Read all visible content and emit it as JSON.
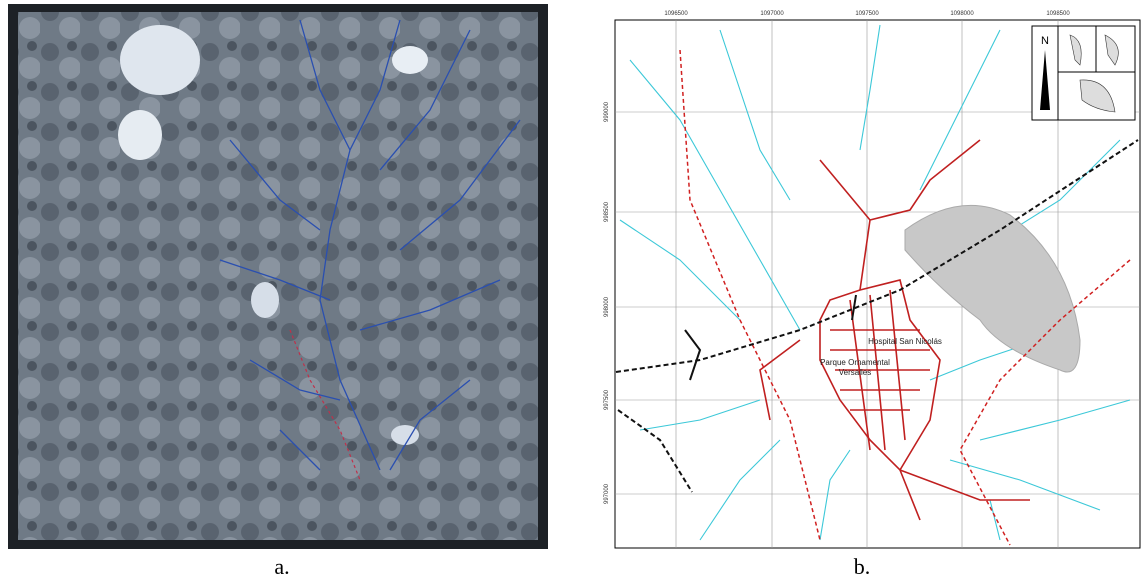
{
  "panels": [
    {
      "label": "a."
    },
    {
      "label": "b.",
      "x_coordinates": [
        "1096500",
        "1097000",
        "1097500",
        "1098000",
        "1098500"
      ],
      "y_coordinates": [
        "999000",
        "998500",
        "998000",
        "997500",
        "997000"
      ],
      "places": [
        "Hospital San Nicolás",
        "Parque Ornamental",
        "Versalles"
      ],
      "north": "N"
    }
  ]
}
